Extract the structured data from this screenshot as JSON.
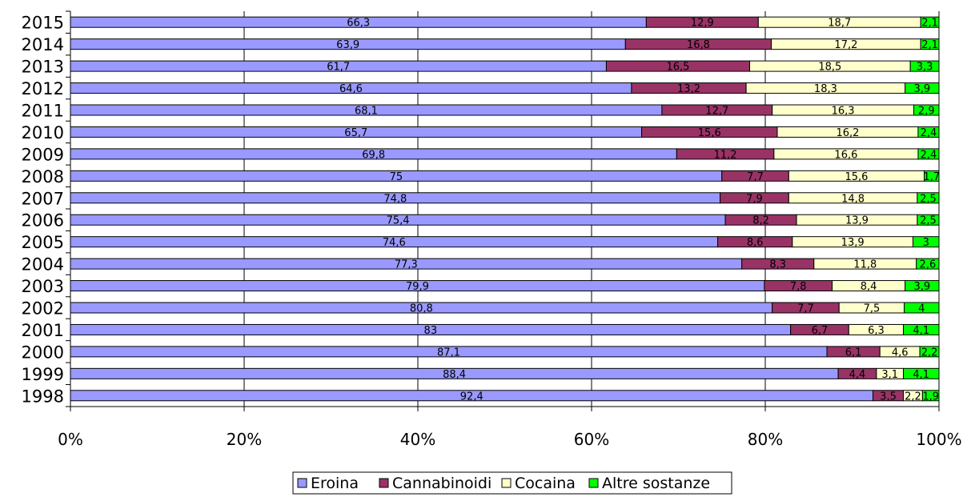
{
  "chart_data": {
    "type": "bar",
    "orientation": "horizontal",
    "stacked": "percent",
    "categories": [
      "2015",
      "2014",
      "2013",
      "2012",
      "2011",
      "2010",
      "2009",
      "2008",
      "2007",
      "2006",
      "2005",
      "2004",
      "2003",
      "2002",
      "2001",
      "2000",
      "1999",
      "1998"
    ],
    "series": [
      {
        "name": "Eroina",
        "color": "#9999ff",
        "values": [
          66.3,
          63.9,
          61.7,
          64.6,
          68.1,
          65.7,
          69.8,
          75,
          74.8,
          75.4,
          74.6,
          77.3,
          79.9,
          80.8,
          83,
          87.1,
          88.4,
          92.4
        ],
        "labels": [
          "66,3",
          "63,9",
          "61,7",
          "64,6",
          "68,1",
          "65,7",
          "69,8",
          "75",
          "74,8",
          "75,4",
          "74,6",
          "77,3",
          "79,9",
          "80,8",
          "83",
          "87,1",
          "88,4",
          "92,4"
        ]
      },
      {
        "name": "Cannabinoidi",
        "color": "#993366",
        "values": [
          12.9,
          16.8,
          16.5,
          13.2,
          12.7,
          15.6,
          11.2,
          7.7,
          7.9,
          8.2,
          8.6,
          8.3,
          7.8,
          7.7,
          6.7,
          6.1,
          4.4,
          3.5
        ],
        "labels": [
          "12,9",
          "16,8",
          "16,5",
          "13,2",
          "12,7",
          "15,6",
          "11,2",
          "7,7",
          "7,9",
          "8,2",
          "8,6",
          "8,3",
          "7,8",
          "7,7",
          "6,7",
          "6,1",
          "4,4",
          "3,5"
        ]
      },
      {
        "name": "Cocaina",
        "color": "#ffffcc",
        "values": [
          18.7,
          17.2,
          18.5,
          18.3,
          16.3,
          16.2,
          16.6,
          15.6,
          14.8,
          13.9,
          13.9,
          11.8,
          8.4,
          7.5,
          6.3,
          4.6,
          3.1,
          2.2
        ],
        "labels": [
          "18,7",
          "17,2",
          "18,5",
          "18,3",
          "16,3",
          "16,2",
          "16,6",
          "15,6",
          "14,8",
          "13,9",
          "13,9",
          "11,8",
          "8,4",
          "7,5",
          "6,3",
          "4,6",
          "3,1",
          "2,2"
        ]
      },
      {
        "name": "Altre sostanze",
        "color": "#00ff00",
        "values": [
          2.1,
          2.1,
          3.3,
          3.9,
          2.9,
          2.4,
          2.4,
          1.7,
          2.5,
          2.5,
          3,
          2.6,
          3.9,
          4,
          4.1,
          2.2,
          4.1,
          1.9
        ],
        "labels": [
          "2,1",
          "2,1",
          "3,3",
          "3,9",
          "2,9",
          "2,4",
          "2,4",
          "1,7",
          "2,5",
          "2,5",
          "3",
          "2,6",
          "3,9",
          "4",
          "4,1",
          "2,2",
          "4,1",
          "1,9"
        ]
      }
    ],
    "x_ticks": [
      "0%",
      "20%",
      "40%",
      "60%",
      "80%",
      "100%"
    ],
    "xlim": [
      0,
      100
    ],
    "grid": "vertical",
    "legend_position": "bottom"
  }
}
